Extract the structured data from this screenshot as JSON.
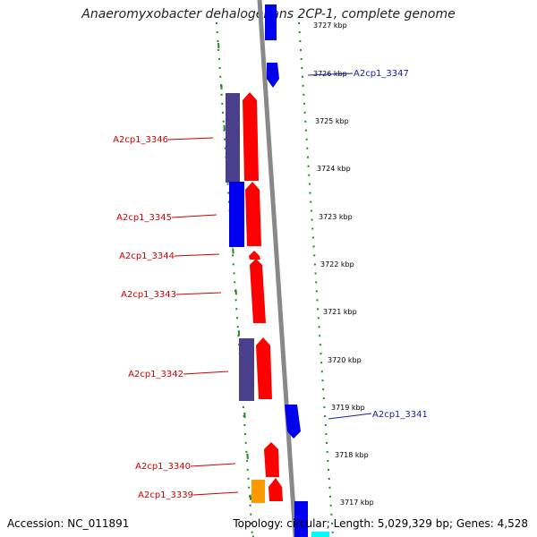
{
  "title": "Anaeromyxobacter dehalogenans 2CP-1, complete genome",
  "footer": {
    "accession_label": "Accession:",
    "accession": "NC_011891",
    "topology_label": "Topology:",
    "topology": "circular",
    "length_label": "Length:",
    "length": "5,029,329 bp",
    "genes_label": "Genes:",
    "genes": "4,528"
  },
  "ticks": [
    "3727 kbp",
    "3726 kbp",
    "3725 kbp",
    "3724 kbp",
    "3723 kbp",
    "3722 kbp",
    "3721 kbp",
    "3720 kbp",
    "3719 kbp",
    "3718 kbp",
    "3717 kbp"
  ],
  "gene_labels_left": [
    "A2cp1_3346",
    "A2cp1_3345",
    "A2cp1_3344",
    "A2cp1_3343",
    "A2cp1_3342",
    "A2cp1_3340",
    "A2cp1_3339"
  ],
  "gene_labels_right": [
    "A2cp1_3347",
    "A2cp1_3341"
  ],
  "colors": {
    "cds_red": "#ff0000",
    "cds_blue": "#0000ee",
    "rna_purple": "#4a3f8c",
    "orange": "#ff9900",
    "cyan": "#00ffff",
    "backbone": "#888888",
    "gc_green": "#228b22",
    "left_label": "#cc0000",
    "right_label": "#1a1aa0"
  }
}
